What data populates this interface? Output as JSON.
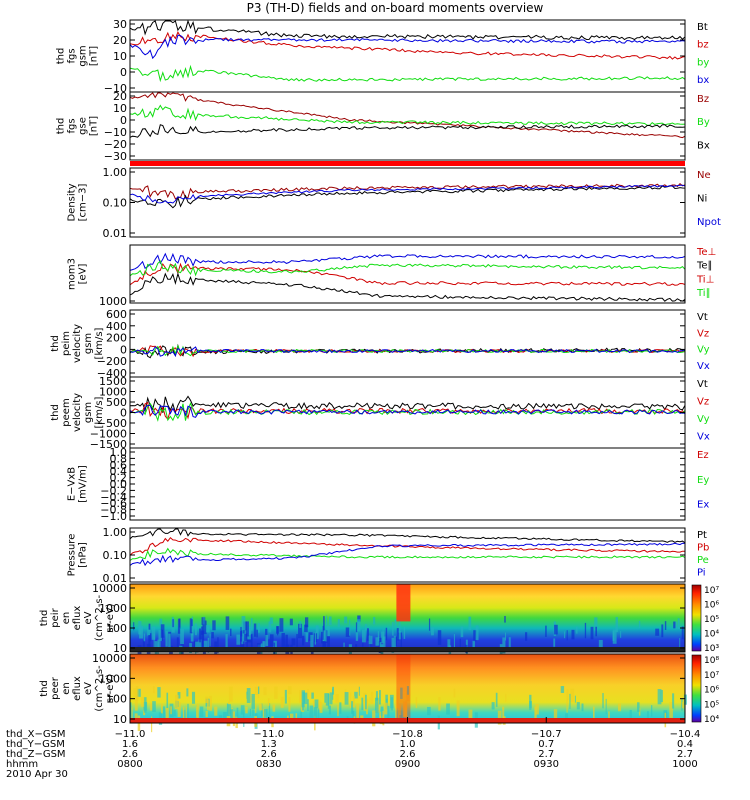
{
  "title": "P3 (TH-D) fields and on-board moments overview",
  "colors": {
    "black": "#000000",
    "red": "#d00000",
    "green": "#11dd11",
    "blue": "#0000dd",
    "darkred": "#9a0000"
  },
  "panels": [
    {
      "ylabel": [
        "thd",
        "fgs",
        "gsm",
        "[nT]"
      ],
      "ticks": [
        "30",
        "20",
        "10",
        "0",
        "−10"
      ],
      "legend": [
        {
          "text": "Bt",
          "color": "black"
        },
        {
          "text": "bz",
          "color": "red"
        },
        {
          "text": "by",
          "color": "green"
        },
        {
          "text": "bx",
          "color": "blue"
        }
      ]
    },
    {
      "ylabel": [
        "thd",
        "fgs",
        "gse",
        "[nT]"
      ],
      "ticks": [
        "20",
        "10",
        "0",
        "−10",
        "−20",
        "−30"
      ],
      "legend": [
        {
          "text": "Bz",
          "color": "darkred"
        },
        {
          "text": "By",
          "color": "green"
        },
        {
          "text": "Bx",
          "color": "black"
        }
      ]
    },
    {
      "ylabel": [
        "Density",
        "[cm−3]"
      ],
      "ticks": [
        "1.00",
        "0.10",
        "0.01"
      ],
      "legend": [
        {
          "text": "Ne",
          "color": "darkred"
        },
        {
          "text": "Ni",
          "color": "black"
        },
        {
          "text": "Npot",
          "color": "blue"
        }
      ]
    },
    {
      "ylabel": [
        "mom3",
        "[eV]"
      ],
      "ticks": [
        "1000"
      ],
      "legend": [
        {
          "text": "Te⊥",
          "color": "red"
        },
        {
          "text": "Te∥",
          "color": "black"
        },
        {
          "text": "Ti⊥",
          "color": "red"
        },
        {
          "text": "Ti∥",
          "color": "green"
        }
      ]
    },
    {
      "ylabel": [
        "thd",
        "peim",
        "velocity",
        "gsm",
        "[km/s]"
      ],
      "ticks": [
        "600",
        "400",
        "200",
        "0",
        "−200",
        "−400"
      ],
      "legend": [
        {
          "text": "Vt",
          "color": "black"
        },
        {
          "text": "Vz",
          "color": "red"
        },
        {
          "text": "Vy",
          "color": "green"
        },
        {
          "text": "Vx",
          "color": "blue"
        }
      ]
    },
    {
      "ylabel": [
        "thd",
        "peem",
        "velocity",
        "gsm",
        "[km/s]"
      ],
      "ticks": [
        "1500",
        "1000",
        "500",
        "0",
        "−500",
        "−1000",
        "−1500"
      ],
      "legend": [
        {
          "text": "Vt",
          "color": "black"
        },
        {
          "text": "Vz",
          "color": "red"
        },
        {
          "text": "Vy",
          "color": "green"
        },
        {
          "text": "Vx",
          "color": "blue"
        }
      ]
    },
    {
      "ylabel": [
        "E−VxB",
        "[mV/m]"
      ],
      "ticks": [
        "1.0",
        "0.8",
        "0.6",
        "0.4",
        "0.2",
        "0.0",
        "−0.2",
        "−0.4",
        "−0.6",
        "−0.8",
        "−1.0"
      ],
      "legend": [
        {
          "text": "Ez",
          "color": "red"
        },
        {
          "text": "Ey",
          "color": "green"
        },
        {
          "text": "Ex",
          "color": "blue"
        }
      ]
    },
    {
      "ylabel": [
        "Pressure",
        "[nPa]"
      ],
      "ticks": [
        "1.00",
        "0.10",
        "0.01"
      ],
      "legend": [
        {
          "text": "Pt",
          "color": "black"
        },
        {
          "text": "Pb",
          "color": "red"
        },
        {
          "text": "Pe",
          "color": "green"
        },
        {
          "text": "Pi",
          "color": "blue"
        }
      ]
    },
    {
      "ylabel": [
        "thd",
        "peir",
        "en",
        "eflux",
        "eV",
        "(cm^2-s-",
        "sr-eV)"
      ],
      "ticks": [
        "10000",
        "1000",
        "100",
        "10"
      ],
      "colorbar": [
        "10⁷",
        "10⁶",
        "10⁵",
        "10⁴",
        "10³"
      ]
    },
    {
      "ylabel": [
        "thd",
        "peer",
        "en",
        "eflux",
        "eV",
        "(cm^2-s-",
        "sr-eV)"
      ],
      "ticks": [
        "10000",
        "1000",
        "100",
        "10"
      ],
      "colorbar": [
        "10⁸",
        "10⁷",
        "10⁶",
        "10⁵",
        "10⁴"
      ]
    }
  ],
  "xaxis": {
    "row_labels": [
      "thd_X−GSM",
      "thd_Y−GSM",
      "thd_Z−GSM",
      "hhmm",
      "2010 Apr 30"
    ],
    "columns": [
      [
        "−11.0",
        "1.6",
        "2.6",
        "0800"
      ],
      [
        "−11.0",
        "1.3",
        "2.6",
        "0830"
      ],
      [
        "−10.8",
        "1.0",
        "2.6",
        "0900"
      ],
      [
        "−10.7",
        "0.7",
        "2.7",
        "0930"
      ],
      [
        "−10.4",
        "0.4",
        "2.7",
        "1000"
      ]
    ]
  },
  "chart_data": [
    {
      "type": "line",
      "title": "P3 (TH-D) fields and on-board moments overview",
      "ylabel": "thd fgs gsm [nT]",
      "ylim": [
        -10,
        30
      ],
      "x": [
        "0800",
        "0808",
        "0815",
        "0830",
        "0900",
        "0930",
        "1000"
      ],
      "series": [
        {
          "name": "Bt",
          "values": [
            22,
            27,
            25,
            22,
            19,
            18,
            17
          ]
        },
        {
          "name": "bz",
          "values": [
            14,
            18,
            16,
            14,
            11,
            9,
            8
          ]
        },
        {
          "name": "by",
          "values": [
            0,
            -2,
            -1,
            -3,
            -4,
            -4,
            -4
          ]
        },
        {
          "name": "bx",
          "values": [
            13,
            10,
            14,
            16,
            15,
            15,
            15
          ]
        }
      ]
    },
    {
      "type": "line",
      "ylabel": "thd fgs gse [nT]",
      "ylim": [
        -30,
        20
      ],
      "x": [
        "0800",
        "0808",
        "0815",
        "0830",
        "0900",
        "0930",
        "1000"
      ],
      "series": [
        {
          "name": "Bz",
          "values": [
            12,
            17,
            15,
            12,
            8,
            5,
            3
          ]
        },
        {
          "name": "By",
          "values": [
            0,
            2,
            -1,
            -1,
            -2,
            -2,
            -2
          ]
        },
        {
          "name": "Bx",
          "values": [
            -18,
            -14,
            -16,
            -14,
            -12,
            -11,
            -10
          ]
        }
      ]
    },
    {
      "type": "line",
      "ylabel": "Density [cm−3]",
      "ylim": [
        0.01,
        1.0
      ],
      "yscale": "log",
      "x": [
        "0800",
        "0808",
        "0815",
        "0830",
        "0900",
        "0930",
        "1000"
      ],
      "series": [
        {
          "name": "Ne",
          "values": [
            0.25,
            0.2,
            0.22,
            0.25,
            0.3,
            0.33,
            0.35
          ]
        },
        {
          "name": "Ni",
          "values": [
            0.2,
            0.15,
            0.18,
            0.22,
            0.26,
            0.3,
            0.32
          ]
        },
        {
          "name": "Npot",
          "values": [
            0.22,
            0.17,
            0.2,
            0.24,
            0.28,
            0.31,
            0.33
          ]
        }
      ]
    },
    {
      "type": "line",
      "ylabel": "mom3 [eV]",
      "yscale": "log",
      "x": [
        "0800",
        "0808",
        "0815",
        "0830",
        "0900",
        "0930",
        "1000"
      ],
      "series": [
        {
          "name": "Te⊥",
          "values": [
            2500,
            3500,
            3000,
            2000,
            1800,
            1700,
            1700
          ]
        },
        {
          "name": "Te∥",
          "values": [
            1500,
            2800,
            2500,
            1500,
            1300,
            1200,
            1200
          ]
        },
        {
          "name": "Ti⊥",
          "values": [
            5000,
            8000,
            7000,
            7500,
            8500,
            8000,
            8000
          ]
        },
        {
          "name": "Ti∥",
          "values": [
            3500,
            6000,
            5500,
            6000,
            6500,
            6200,
            6000
          ]
        }
      ]
    },
    {
      "type": "line",
      "ylabel": "thd peim velocity gsm [km/s]",
      "ylim": [
        -400,
        600
      ],
      "x": [
        "0800",
        "0808",
        "0815",
        "0830",
        "0900",
        "0930",
        "1000"
      ],
      "series": [
        {
          "name": "Vt",
          "values": [
            100,
            400,
            150,
            50,
            30,
            30,
            30
          ]
        },
        {
          "name": "Vz",
          "values": [
            0,
            150,
            50,
            0,
            0,
            0,
            0
          ]
        },
        {
          "name": "Vy",
          "values": [
            0,
            -100,
            20,
            0,
            0,
            0,
            0
          ]
        },
        {
          "name": "Vx",
          "values": [
            -50,
            -150,
            -20,
            0,
            0,
            0,
            0
          ]
        }
      ]
    },
    {
      "type": "line",
      "ylabel": "thd peem velocity gsm [km/s]",
      "ylim": [
        -1500,
        1500
      ],
      "x": [
        "0800",
        "0808",
        "0815",
        "0830",
        "0900",
        "0930",
        "1000"
      ],
      "series": [
        {
          "name": "Vt",
          "values": [
            300,
            1300,
            600,
            200,
            150,
            150,
            150
          ]
        },
        {
          "name": "Vz",
          "values": [
            0,
            600,
            100,
            50,
            0,
            50,
            0
          ]
        },
        {
          "name": "Vy",
          "values": [
            -100,
            -800,
            -100,
            -50,
            0,
            -50,
            0
          ]
        },
        {
          "name": "Vx",
          "values": [
            -200,
            -1200,
            -100,
            0,
            0,
            0,
            0
          ]
        }
      ]
    },
    {
      "type": "line",
      "ylabel": "E−VxB [mV/m]",
      "ylim": [
        -1.0,
        1.0
      ],
      "series": [
        {
          "name": "Ez",
          "values": []
        },
        {
          "name": "Ey",
          "values": []
        },
        {
          "name": "Ex",
          "values": []
        }
      ]
    },
    {
      "type": "line",
      "ylabel": "Pressure [nPa]",
      "ylim": [
        0.01,
        1.0
      ],
      "yscale": "log",
      "x": [
        "0800",
        "0808",
        "0815",
        "0830",
        "0900",
        "0930",
        "1000"
      ],
      "series": [
        {
          "name": "Pt",
          "values": [
            0.3,
            0.45,
            0.38,
            0.32,
            0.28,
            0.25,
            0.24
          ]
        },
        {
          "name": "Pb",
          "values": [
            0.2,
            0.3,
            0.25,
            0.2,
            0.15,
            0.12,
            0.1
          ]
        },
        {
          "name": "Pe",
          "values": [
            0.06,
            0.08,
            0.07,
            0.06,
            0.07,
            0.07,
            0.07
          ]
        },
        {
          "name": "Pi",
          "values": [
            0.05,
            0.08,
            0.07,
            0.07,
            0.12,
            0.14,
            0.15
          ]
        }
      ]
    },
    {
      "type": "heatmap",
      "ylabel": "thd peir en eflux eV (cm^2-s-sr-eV)",
      "yscale": "log",
      "ylim": [
        10,
        20000
      ],
      "colorbar": [
        "10⁷",
        "10⁶",
        "10⁵",
        "10⁴",
        "10³"
      ]
    },
    {
      "type": "heatmap",
      "ylabel": "thd peer en eflux eV (cm^2-s-sr-eV)",
      "yscale": "log",
      "ylim": [
        10,
        20000
      ],
      "colorbar": [
        "10⁸",
        "10⁷",
        "10⁶",
        "10⁵",
        "10⁴"
      ]
    }
  ]
}
